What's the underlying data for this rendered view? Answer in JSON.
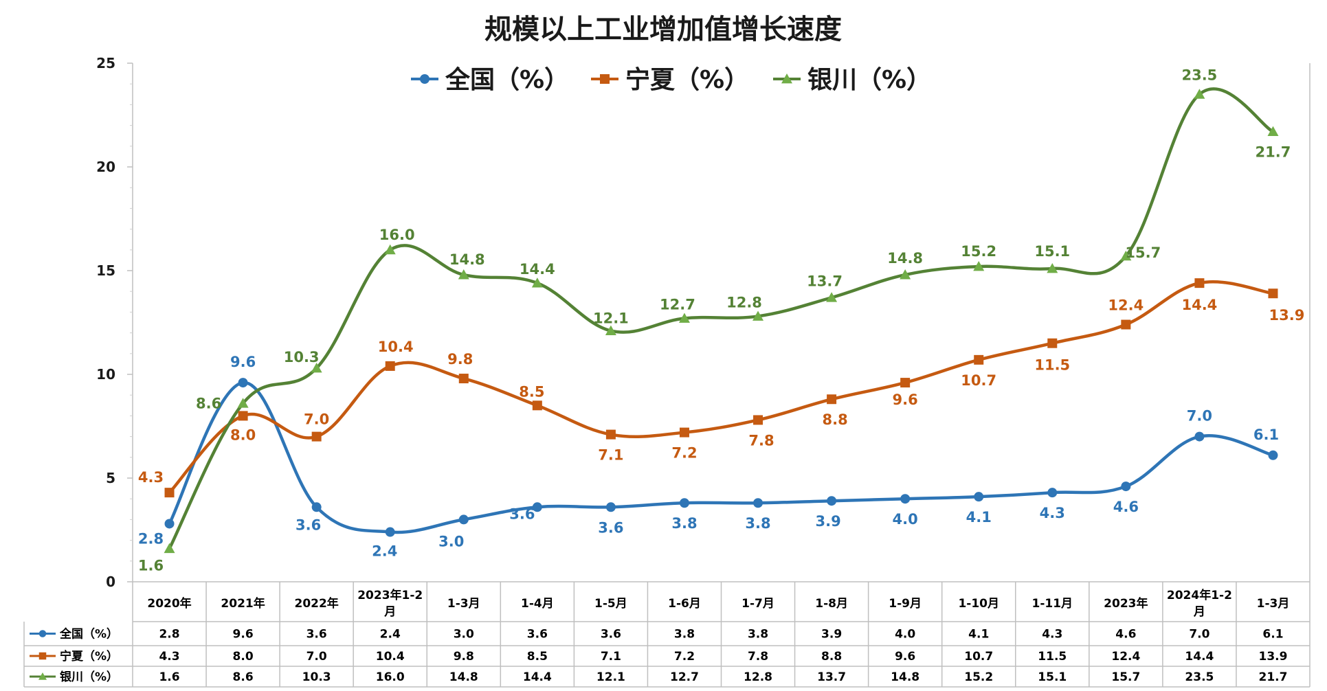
{
  "chart_data": {
    "type": "line",
    "title": "规模以上工业增加值增长速度",
    "categories": [
      {
        "line1": "2020年",
        "line2": ""
      },
      {
        "line1": "2021年",
        "line2": ""
      },
      {
        "line1": "2022年",
        "line2": ""
      },
      {
        "line1": "2023年1-2",
        "line2": "月"
      },
      {
        "line1": "1-3月",
        "line2": ""
      },
      {
        "line1": "1-4月",
        "line2": ""
      },
      {
        "line1": "1-5月",
        "line2": ""
      },
      {
        "line1": "1-6月",
        "line2": ""
      },
      {
        "line1": "1-7月",
        "line2": ""
      },
      {
        "line1": "1-8月",
        "line2": ""
      },
      {
        "line1": "1-9月",
        "line2": ""
      },
      {
        "line1": "1-10月",
        "line2": ""
      },
      {
        "line1": "1-11月",
        "line2": ""
      },
      {
        "line1": "2023年",
        "line2": ""
      },
      {
        "line1": "2024年1-2",
        "line2": "月"
      },
      {
        "line1": "1-3月",
        "line2": ""
      }
    ],
    "series": [
      {
        "name": "全国（%）",
        "color": "#2E75B6",
        "marker": "circle",
        "values": [
          2.8,
          9.6,
          3.6,
          2.4,
          3.0,
          3.6,
          3.6,
          3.8,
          3.8,
          3.9,
          4.0,
          4.1,
          4.3,
          4.6,
          7.0,
          6.1
        ],
        "labels": [
          "2.8",
          "9.6",
          "3.6",
          "2.4",
          "3.0",
          "3.6",
          "3.6",
          "3.8",
          "3.8",
          "3.9",
          "4.0",
          "4.1",
          "4.3",
          "4.6",
          "7.0",
          "6.1"
        ]
      },
      {
        "name": "宁夏（%）",
        "color": "#C55A11",
        "marker": "square",
        "values": [
          4.3,
          8.0,
          7.0,
          10.4,
          9.8,
          8.5,
          7.1,
          7.2,
          7.8,
          8.8,
          9.6,
          10.7,
          11.5,
          12.4,
          14.4,
          13.9
        ],
        "labels": [
          "4.3",
          "8.0",
          "7.0",
          "10.4",
          "9.8",
          "8.5",
          "7.1",
          "7.2",
          "7.8",
          "8.8",
          "9.6",
          "10.7",
          "11.5",
          "12.4",
          "14.4",
          "13.9"
        ]
      },
      {
        "name": "银川（%）",
        "color": "#548235",
        "marker": "triangle",
        "values": [
          1.6,
          8.6,
          10.3,
          16.0,
          14.8,
          14.4,
          12.1,
          12.7,
          12.8,
          13.7,
          14.8,
          15.2,
          15.1,
          15.7,
          23.5,
          21.7
        ],
        "labels": [
          "1.6",
          "8.6",
          "10.3",
          "16.0",
          "14.8",
          "14.4",
          "12.1",
          "12.7",
          "12.8",
          "13.7",
          "14.8",
          "15.2",
          "15.1",
          "15.7",
          "23.5",
          "21.7"
        ]
      }
    ],
    "ylim": [
      0,
      25
    ],
    "yticks": [
      "0",
      "5",
      "10",
      "15",
      "20",
      "25"
    ],
    "legend_position": "top",
    "grid": false,
    "data_table": true,
    "smoothed": true
  }
}
